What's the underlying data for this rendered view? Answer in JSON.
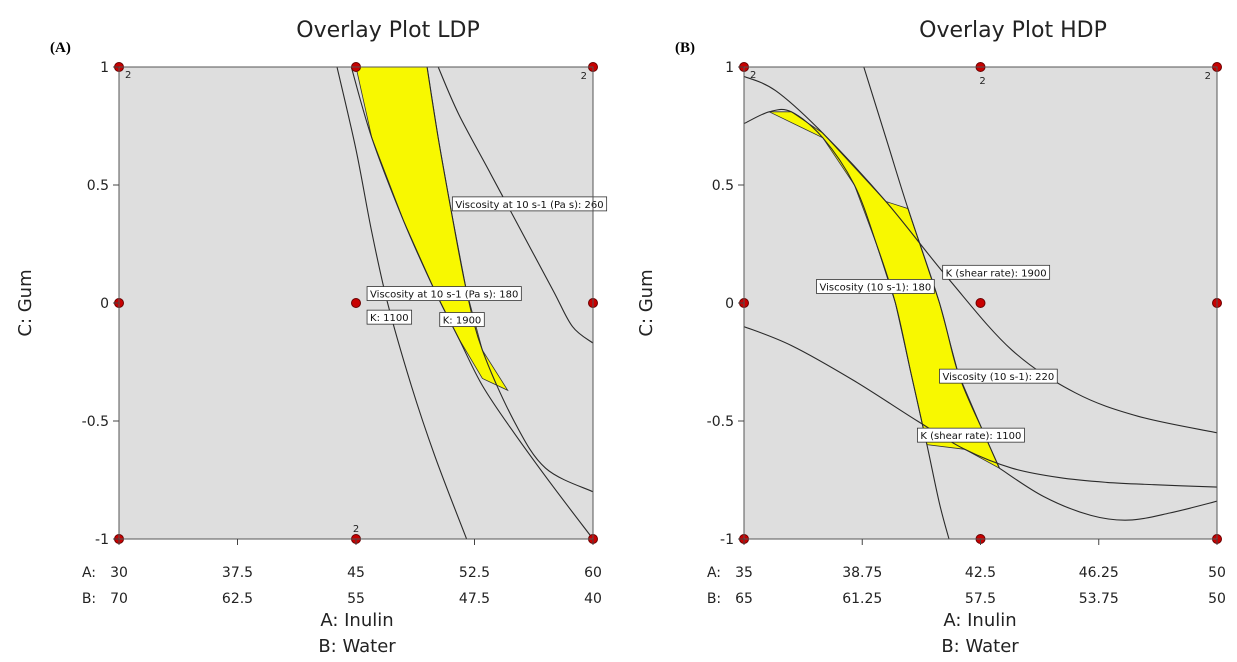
{
  "chart_data": [
    {
      "type": "contour-overlay",
      "panel": "(A)",
      "title": "Overlay Plot   LDP",
      "xlabel": [
        "A: Inulin",
        "B: Water"
      ],
      "ylabel": "C: Gum",
      "x_axes": [
        {
          "prefix": "A:",
          "ticks": [
            "30",
            "37.5",
            "45",
            "52.5",
            "60"
          ],
          "range": [
            30,
            60
          ]
        },
        {
          "prefix": "B:",
          "ticks": [
            "70",
            "62.5",
            "55",
            "47.5",
            "40"
          ],
          "range": [
            70,
            40
          ]
        }
      ],
      "y_ticks": [
        "1",
        "0.5",
        "0",
        "-0.5",
        "-1"
      ],
      "ylim": [
        -1,
        1
      ],
      "design_points": [
        {
          "a": 30,
          "c": 1,
          "count": "2"
        },
        {
          "a": 45,
          "c": 1
        },
        {
          "a": 60,
          "c": 1,
          "count": "2"
        },
        {
          "a": 30,
          "c": 0
        },
        {
          "a": 45,
          "c": 0
        },
        {
          "a": 60,
          "c": 0
        },
        {
          "a": 30,
          "c": -1
        },
        {
          "a": 45,
          "c": -1,
          "count": "2"
        },
        {
          "a": 60,
          "c": -1
        }
      ],
      "contours": [
        {
          "name": "Viscosity at 10 s-1 (Pa s): 180",
          "label": "Viscosity at 10 s-1 (Pa s): 180",
          "points": [
            [
              44.7,
              1
            ],
            [
              46,
              0.7
            ],
            [
              48,
              0.35
            ],
            [
              50,
              0.05
            ],
            [
              51.5,
              -0.15
            ],
            [
              53,
              -0.35
            ],
            [
              55,
              -0.55
            ],
            [
              57.5,
              -0.78
            ],
            [
              60,
              -1
            ]
          ]
        },
        {
          "name": "Viscosity at 10 s-1 (Pa s): 260",
          "label": "Viscosity at 10 s-1 (Pa s): 260",
          "points": [
            [
              50.2,
              1
            ],
            [
              51.5,
              0.8
            ],
            [
              53.5,
              0.55
            ],
            [
              55.5,
              0.3
            ],
            [
              57.5,
              0.05
            ],
            [
              58.7,
              -0.1
            ],
            [
              60,
              -0.17
            ]
          ]
        },
        {
          "name": "K: 1100",
          "label": "K: 1100",
          "points": [
            [
              43.8,
              1
            ],
            [
              45,
              0.65
            ],
            [
              46,
              0.3
            ],
            [
              47,
              0
            ],
            [
              48.5,
              -0.35
            ],
            [
              50,
              -0.65
            ],
            [
              52,
              -1
            ]
          ]
        },
        {
          "name": "K: 1900",
          "label": "K: 1900",
          "points": [
            [
              49.5,
              1
            ],
            [
              50.2,
              0.7
            ],
            [
              51,
              0.4
            ],
            [
              52,
              0.05
            ],
            [
              53,
              -0.2
            ],
            [
              55,
              -0.5
            ],
            [
              57,
              -0.7
            ],
            [
              60,
              -0.8
            ]
          ]
        }
      ],
      "feasible_region": [
        [
          45,
          1
        ],
        [
          49.5,
          1
        ],
        [
          50.2,
          0.7
        ],
        [
          51,
          0.4
        ],
        [
          52,
          0.05
        ],
        [
          53,
          -0.2
        ],
        [
          54.6,
          -0.37
        ],
        [
          53,
          -0.32
        ],
        [
          51.5,
          -0.15
        ],
        [
          50,
          0.05
        ],
        [
          48,
          0.35
        ],
        [
          46,
          0.7
        ]
      ],
      "label_boxes": [
        {
          "text": "Viscosity at 10 s-1 (Pa s): 260",
          "a": 51.1,
          "c": 0.42
        },
        {
          "text": "Viscosity at 10 s-1 (Pa s): 180",
          "a": 45.7,
          "c": 0.04
        },
        {
          "text": "K: 1100",
          "a": 45.7,
          "c": -0.06
        },
        {
          "text": "K: 1900",
          "a": 50.3,
          "c": -0.07
        }
      ]
    },
    {
      "type": "contour-overlay",
      "panel": "(B)",
      "title": "Overlay Plot HDP",
      "xlabel": [
        "A: Inulin",
        "B: Water"
      ],
      "ylabel": "C: Gum",
      "x_axes": [
        {
          "prefix": "A:",
          "ticks": [
            "35",
            "38.75",
            "42.5",
            "46.25",
            "50"
          ],
          "range": [
            35,
            50
          ]
        },
        {
          "prefix": "B:",
          "ticks": [
            "65",
            "61.25",
            "57.5",
            "53.75",
            "50"
          ],
          "range": [
            65,
            50
          ]
        }
      ],
      "y_ticks": [
        "1",
        "0.5",
        "0",
        "-0.5",
        "-1"
      ],
      "ylim": [
        -1,
        1
      ],
      "design_points": [
        {
          "a": 35,
          "c": 1,
          "count": "2"
        },
        {
          "a": 42.5,
          "c": 1,
          "count": "2"
        },
        {
          "a": 50,
          "c": 1,
          "count": "2"
        },
        {
          "a": 35,
          "c": 0
        },
        {
          "a": 42.5,
          "c": 0
        },
        {
          "a": 50,
          "c": 0
        },
        {
          "a": 35,
          "c": -1
        },
        {
          "a": 42.5,
          "c": -1
        },
        {
          "a": 50,
          "c": -1
        }
      ],
      "contours": [
        {
          "name": "Viscosity (10 s-1): 180",
          "label": "Viscosity (10 s-1): 180",
          "points": [
            [
              35,
              0.76
            ],
            [
              35.8,
              0.81
            ],
            [
              36.5,
              0.81
            ],
            [
              37.5,
              0.7
            ],
            [
              38.5,
              0.5
            ],
            [
              39.2,
              0.25
            ],
            [
              39.8,
              0
            ],
            [
              40.3,
              -0.3
            ],
            [
              40.8,
              -0.6
            ],
            [
              41.2,
              -0.85
            ],
            [
              41.5,
              -1
            ]
          ]
        },
        {
          "name": "Viscosity (10 s-1): 220",
          "label": "Viscosity (10 s-1): 220",
          "points": [
            [
              38.8,
              1
            ],
            [
              39.5,
              0.7
            ],
            [
              40.2,
              0.4
            ],
            [
              41.2,
              0
            ],
            [
              41.8,
              -0.3
            ],
            [
              42.6,
              -0.55
            ],
            [
              43.1,
              -0.7
            ]
          ]
        },
        {
          "name": "K (shear rate): 1900",
          "label": "K (shear rate): 1900",
          "points": [
            [
              35,
              0.96
            ],
            [
              36,
              0.9
            ],
            [
              37.5,
              0.72
            ],
            [
              39.5,
              0.43
            ],
            [
              41.5,
              0.1
            ],
            [
              43.5,
              -0.2
            ],
            [
              45.5,
              -0.38
            ],
            [
              47.5,
              -0.48
            ],
            [
              50,
              -0.55
            ]
          ]
        },
        {
          "name": "K (shear rate): 1100",
          "label": "K (shear rate): 1100",
          "points": [
            [
              35,
              -0.1
            ],
            [
              36.5,
              -0.18
            ],
            [
              38.5,
              -0.33
            ],
            [
              40.5,
              -0.5
            ],
            [
              42,
              -0.62
            ],
            [
              43.5,
              -0.7
            ],
            [
              45,
              -0.74
            ],
            [
              46.5,
              -0.76
            ],
            [
              48,
              -0.77
            ],
            [
              50,
              -0.78
            ]
          ]
        },
        {
          "name": "boundary",
          "label": "",
          "points": [
            [
              43.1,
              -0.7
            ],
            [
              44.5,
              -0.82
            ],
            [
              46,
              -0.9
            ],
            [
              47.2,
              -0.92
            ],
            [
              48.5,
              -0.89
            ],
            [
              50,
              -0.84
            ]
          ]
        }
      ],
      "feasible_region": [
        [
          35.8,
          0.81
        ],
        [
          36.5,
          0.81
        ],
        [
          37.5,
          0.72
        ],
        [
          39.5,
          0.43
        ],
        [
          40.2,
          0.4
        ],
        [
          41.2,
          0
        ],
        [
          41.8,
          -0.3
        ],
        [
          42.6,
          -0.55
        ],
        [
          43.1,
          -0.7
        ],
        [
          42,
          -0.62
        ],
        [
          40.8,
          -0.6
        ],
        [
          40.3,
          -0.3
        ],
        [
          39.8,
          0
        ],
        [
          39.2,
          0.25
        ],
        [
          38.5,
          0.5
        ],
        [
          37.5,
          0.7
        ]
      ],
      "label_boxes": [
        {
          "text": "K (shear rate): 1900",
          "a": 41.3,
          "c": 0.13
        },
        {
          "text": "Viscosity (10 s-1): 180",
          "a": 37.3,
          "c": 0.07
        },
        {
          "text": "Viscosity (10 s-1): 220",
          "a": 41.2,
          "c": -0.31
        },
        {
          "text": "K (shear rate): 1100",
          "a": 40.5,
          "c": -0.56
        }
      ]
    }
  ]
}
